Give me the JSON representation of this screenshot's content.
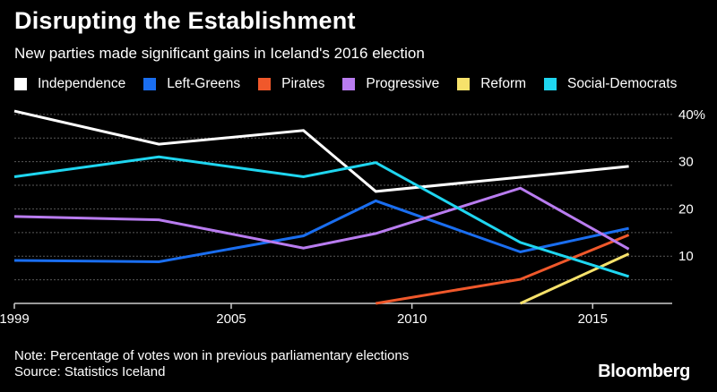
{
  "colors": {
    "background": "#000000",
    "text": "#ffffff",
    "grid": "#5a5a5a",
    "axis": "#cccccc"
  },
  "footer": {
    "note": "Note: Percentage of votes won in previous parliamentary elections",
    "source": "Source: Statistics Iceland",
    "brand": "Bloomberg"
  },
  "chart_data": {
    "type": "line",
    "title": "Disrupting the Establishment",
    "subtitle": "New parties made significant gains in Iceland's 2016 election",
    "xlabel": "",
    "ylabel": "",
    "xlim": [
      1999,
      2017.2
    ],
    "ylim": [
      0,
      43
    ],
    "x_ticks": [
      1999,
      2005,
      2010,
      2015
    ],
    "y_ticks": [
      {
        "value": 10,
        "label": "10"
      },
      {
        "value": 20,
        "label": "20"
      },
      {
        "value": 30,
        "label": "30"
      },
      {
        "value": 40,
        "label": "40%"
      }
    ],
    "gridlines": [
      5,
      10,
      15,
      20,
      25,
      30,
      35,
      40
    ],
    "grid": true,
    "legend_position": "top",
    "series": [
      {
        "name": "Independence",
        "color": "#ffffff",
        "points": [
          [
            1999,
            40.7
          ],
          [
            2003,
            33.7
          ],
          [
            2007,
            36.6
          ],
          [
            2009,
            23.7
          ],
          [
            2013,
            26.7
          ],
          [
            2016,
            29.0
          ]
        ]
      },
      {
        "name": "Left-Greens",
        "color": "#1a6ef0",
        "points": [
          [
            1999,
            9.1
          ],
          [
            2003,
            8.8
          ],
          [
            2007,
            14.3
          ],
          [
            2009,
            21.7
          ],
          [
            2013,
            10.9
          ],
          [
            2016,
            15.9
          ]
        ]
      },
      {
        "name": "Pirates",
        "color": "#f0582b",
        "points": [
          [
            2009,
            0.0
          ],
          [
            2013,
            5.1
          ],
          [
            2016,
            14.5
          ]
        ]
      },
      {
        "name": "Progressive",
        "color": "#b97cf0",
        "points": [
          [
            1999,
            18.4
          ],
          [
            2003,
            17.7
          ],
          [
            2007,
            11.7
          ],
          [
            2009,
            14.8
          ],
          [
            2013,
            24.4
          ],
          [
            2016,
            11.5
          ]
        ]
      },
      {
        "name": "Reform",
        "color": "#f7e26b",
        "points": [
          [
            2013,
            0.0
          ],
          [
            2016,
            10.5
          ]
        ]
      },
      {
        "name": "Social-Democrats",
        "color": "#1fd6f0",
        "points": [
          [
            1999,
            26.8
          ],
          [
            2003,
            31.0
          ],
          [
            2007,
            26.8
          ],
          [
            2009,
            29.8
          ],
          [
            2013,
            12.9
          ],
          [
            2016,
            5.7
          ]
        ]
      }
    ]
  }
}
